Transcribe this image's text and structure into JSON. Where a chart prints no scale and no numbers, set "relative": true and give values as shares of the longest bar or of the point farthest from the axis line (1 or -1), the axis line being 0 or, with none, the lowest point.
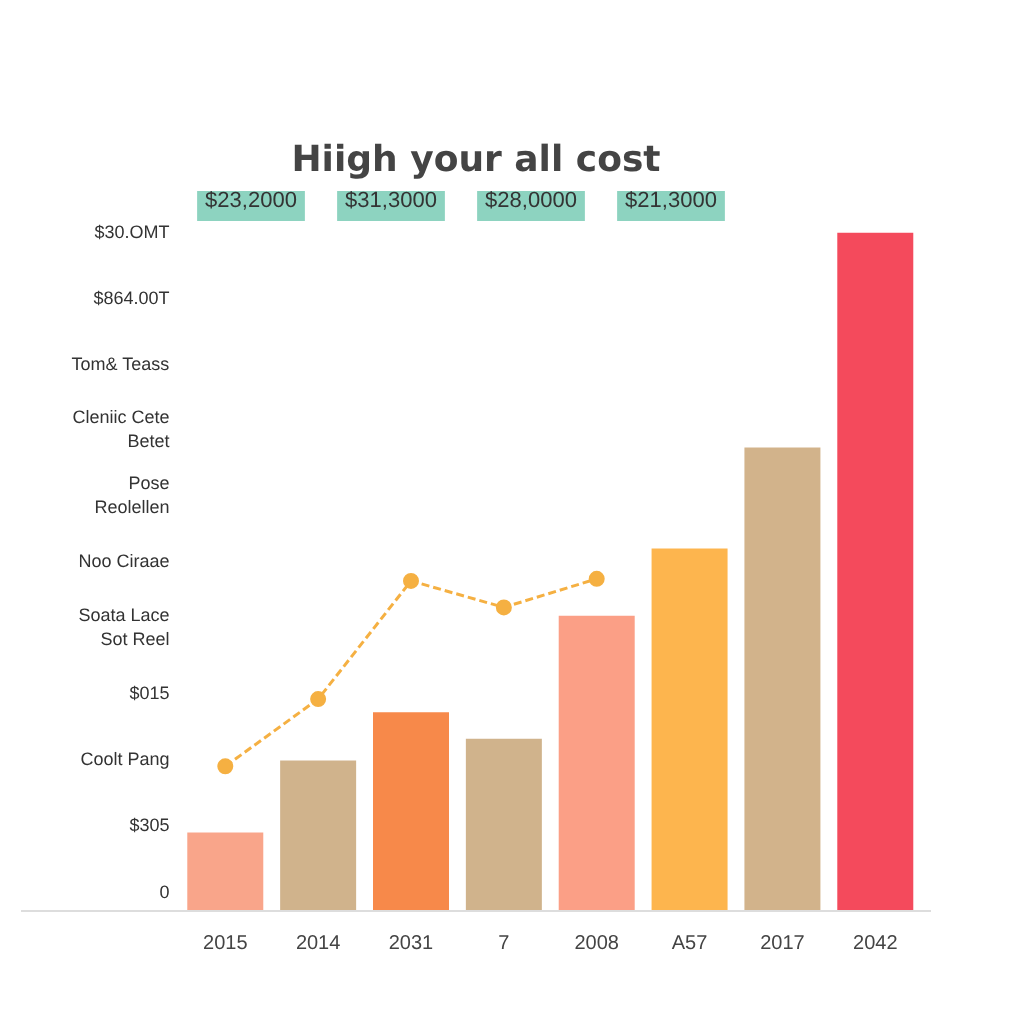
{
  "chart_data": {
    "type": "bar",
    "title": "Hiigh your all cost",
    "relative": true,
    "grid": false,
    "marker": "circle",
    "line_style": "dashed",
    "categories": [
      "2015",
      "2014",
      "2031",
      "7",
      "2008",
      "A57",
      "2017",
      "2042"
    ],
    "series": [
      {
        "colors": [
          "#f9a58a",
          "#d0b38c",
          "#f7894a",
          "#d0b38c",
          "#fb9f86",
          "#fdb54e",
          "#d2b38b",
          "#f44a5c"
        ],
        "values": [
          0.117,
          0.223,
          0.294,
          0.255,
          0.436,
          0.535,
          0.684,
          1.0
        ]
      },
      {
        "type": "line",
        "color": "#f5b042",
        "values": [
          0.213,
          0.312,
          0.486,
          0.447,
          0.489,
          null,
          null,
          null
        ]
      }
    ],
    "annotations": [
      "$23,2000",
      "$31,3000",
      "$28,0000",
      "$21,3000",
      "$30.OMT",
      "$864.00T",
      "Tom& Teass",
      "Cleniic Cete\nBetet",
      "Pose\nReolellen",
      "Noo Ciraae",
      "Soata Lace\nSot Reel",
      "$015",
      "Coolt Pang",
      "$305",
      "0"
    ]
  }
}
